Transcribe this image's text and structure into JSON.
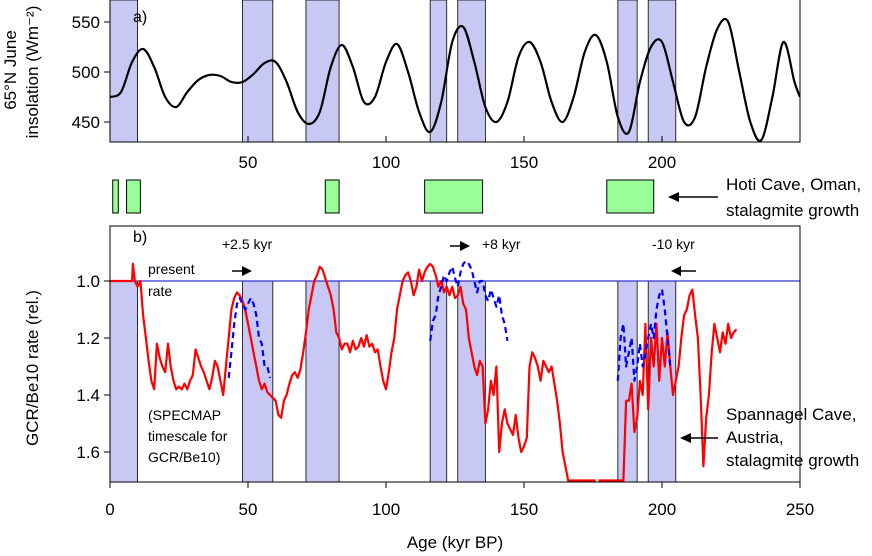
{
  "chart_data": [
    {
      "panel": "a)",
      "type": "line",
      "ylabel_line1": "65°N June",
      "ylabel_line2": "insolation (Wm⁻²)",
      "ylim": [
        430,
        560
      ],
      "yticks": [
        "450",
        "500",
        "550"
      ],
      "ytick_values": [
        450,
        500,
        550
      ],
      "xlim": [
        0,
        250
      ],
      "series": [
        {
          "color": "#000000",
          "x": [
            0,
            4,
            8,
            12,
            16,
            20,
            24,
            28,
            32,
            36,
            40,
            44,
            48,
            52,
            56,
            60,
            64,
            68,
            72,
            76,
            80,
            84,
            88,
            92,
            96,
            100,
            104,
            108,
            112,
            116,
            120,
            124,
            128,
            132,
            136,
            140,
            144,
            148,
            152,
            156,
            160,
            164,
            168,
            172,
            176,
            180,
            184,
            188,
            192,
            196,
            200,
            204,
            208,
            212,
            216,
            220,
            224,
            228,
            232,
            236,
            240,
            244,
            248,
            250
          ],
          "y": [
            475,
            480,
            510,
            523,
            505,
            475,
            465,
            480,
            492,
            497,
            496,
            490,
            490,
            498,
            509,
            510,
            490,
            460,
            448,
            460,
            505,
            527,
            505,
            470,
            475,
            510,
            528,
            500,
            460,
            440,
            470,
            530,
            545,
            510,
            465,
            450,
            470,
            515,
            530,
            510,
            470,
            450,
            475,
            520,
            537,
            510,
            455,
            440,
            490,
            525,
            530,
            490,
            450,
            455,
            505,
            543,
            550,
            500,
            450,
            432,
            475,
            530,
            490,
            475
          ]
        }
      ],
      "shaded_intervals": [
        [
          0,
          10
        ],
        [
          48,
          59
        ],
        [
          71,
          83
        ],
        [
          116,
          122
        ],
        [
          126,
          136
        ],
        [
          184,
          191
        ],
        [
          195,
          205
        ]
      ]
    },
    {
      "panel": "middle",
      "type": "bar",
      "label_line1": "Hoti Cave, Oman,",
      "label_line2": "stalagmite growth",
      "color": "#99ff99",
      "bars": [
        [
          1,
          3
        ],
        [
          6,
          11
        ],
        [
          78,
          83
        ],
        [
          114,
          135
        ],
        [
          180,
          197
        ]
      ]
    },
    {
      "panel": "b)",
      "type": "line",
      "ylabel": "GCR/Be10 rate (rel.)",
      "ylim": [
        1.7,
        0.8
      ],
      "yticks": [
        "1.0",
        "1.2",
        "1.4",
        "1.6"
      ],
      "ytick_values": [
        1.0,
        1.2,
        1.4,
        1.6
      ],
      "xlabel": "Age (kyr BP)",
      "xlim": [
        0,
        250
      ],
      "xticks": [
        "0",
        "50",
        "100",
        "150",
        "200",
        "250"
      ],
      "xtick_values": [
        0,
        50,
        100,
        150,
        200,
        250
      ],
      "present_rate": 1.0,
      "present_label_1": "present",
      "present_label_2": "rate",
      "timescale_note_1": "(SPECMAP",
      "timescale_note_2": "timescale for",
      "timescale_note_3": "GCR/Be10)",
      "shift_labels": [
        "+2.5 kyr",
        "+8 kyr",
        "-10 kyr"
      ],
      "spannagel_line1": "Spannagel Cave,",
      "spannagel_line2": "Austria,",
      "spannagel_line3": "stalagmite growth",
      "series": [
        {
          "color": "#ff0000",
          "style": "solid",
          "x": [
            0,
            8,
            8.3,
            9,
            10,
            11,
            12,
            13,
            14,
            15,
            16,
            17,
            18,
            19,
            20,
            21,
            22,
            23,
            24,
            25,
            26,
            27,
            28,
            29,
            30,
            31,
            32,
            33,
            34,
            35,
            36,
            37,
            38,
            39,
            40,
            41,
            42,
            43,
            44,
            45,
            46,
            47,
            48,
            49,
            50,
            51,
            52,
            53,
            54,
            55,
            56,
            57,
            58,
            59,
            60,
            61,
            62,
            63,
            64,
            65,
            66,
            67,
            68,
            69,
            70,
            71,
            72,
            73,
            74,
            75,
            76,
            77,
            78,
            79,
            80,
            81,
            82,
            83,
            84,
            85,
            86,
            87,
            88,
            89,
            90,
            91,
            92,
            93,
            94,
            95,
            96,
            97,
            98,
            99,
            100,
            101,
            102,
            103,
            104,
            105,
            106,
            107,
            108,
            109,
            110,
            111,
            112,
            113,
            114,
            115,
            116,
            117,
            118,
            119,
            120,
            121,
            122,
            123,
            124,
            125,
            126,
            127,
            128,
            129,
            130,
            131,
            132,
            133,
            134,
            135,
            136,
            137,
            138,
            139,
            140,
            141,
            142,
            143,
            144,
            145,
            146,
            147,
            148,
            149,
            150,
            151,
            152,
            153,
            154,
            155,
            156,
            157,
            158,
            159,
            160,
            161,
            162,
            163,
            164,
            165,
            166,
            167,
            168,
            169,
            170,
            171,
            172,
            173,
            174,
            175,
            176
          ],
          "y": [
            1.0,
            1.0,
            0.94,
            1.0,
            1.02,
            1.0,
            1.12,
            1.2,
            1.28,
            1.35,
            1.38,
            1.22,
            1.27,
            1.3,
            1.32,
            1.22,
            1.3,
            1.35,
            1.38,
            1.37,
            1.38,
            1.36,
            1.38,
            1.35,
            1.33,
            1.24,
            1.27,
            1.3,
            1.32,
            1.35,
            1.38,
            1.34,
            1.28,
            1.3,
            1.35,
            1.4,
            1.3,
            1.2,
            1.1,
            1.06,
            1.04,
            1.05,
            1.07,
            1.1,
            1.15,
            1.2,
            1.25,
            1.3,
            1.35,
            1.38,
            1.36,
            1.39,
            1.4,
            1.41,
            1.42,
            1.47,
            1.48,
            1.42,
            1.4,
            1.36,
            1.33,
            1.32,
            1.34,
            1.31,
            1.25,
            1.18,
            1.1,
            1.05,
            1.0,
            0.98,
            0.95,
            0.96,
            0.99,
            1.02,
            1.05,
            1.1,
            1.18,
            1.2,
            1.24,
            1.22,
            1.22,
            1.25,
            1.21,
            1.24,
            1.23,
            1.2,
            1.23,
            1.19,
            1.23,
            1.22,
            1.25,
            1.24,
            1.3,
            1.35,
            1.38,
            1.32,
            1.25,
            1.2,
            1.1,
            1.05,
            1.0,
            0.98,
            0.97,
            1.0,
            1.05,
            1.02,
            0.96,
            1.0,
            0.97,
            0.95,
            0.94,
            0.95,
            0.98,
            1.02,
            1.0,
            1.04,
            1.02,
            1.05,
            1.02,
            1.06,
            1.05,
            1.02,
            1.08,
            1.1,
            1.2,
            1.25,
            1.3,
            1.33,
            1.28,
            1.3,
            1.5,
            1.45,
            1.35,
            1.4,
            1.3,
            1.6,
            1.5,
            1.45,
            1.5,
            1.52,
            1.54,
            1.47,
            1.55,
            1.6,
            1.58,
            1.55,
            1.3,
            1.25,
            1.27,
            1.3,
            1.35,
            1.28,
            1.3,
            1.32,
            1.3,
            1.36,
            1.42,
            1.5,
            1.6,
            1.65,
            1.7,
            1.7,
            1.7,
            1.7,
            1.7,
            1.7,
            1.7,
            1.7,
            1.7,
            1.7,
            1.7
          ]
        },
        {
          "color": "#ff0000",
          "style": "solid",
          "x": [
            177,
            178,
            179,
            180,
            181,
            182,
            183,
            184,
            185,
            186,
            187,
            188,
            189,
            190,
            191,
            192,
            193,
            194,
            195,
            196,
            197,
            198,
            199,
            200,
            201,
            202,
            203,
            204,
            205,
            206,
            207,
            208,
            209,
            210,
            211,
            212,
            213,
            214,
            215,
            216,
            217,
            218,
            219,
            220,
            221,
            222,
            223,
            224,
            225,
            226,
            227
          ],
          "y": [
            1.7,
            1.7,
            1.7,
            1.7,
            1.7,
            1.7,
            1.7,
            1.7,
            1.7,
            1.7,
            1.42,
            1.42,
            1.36,
            1.53,
            1.48,
            1.35,
            1.4,
            1.15,
            1.45,
            1.2,
            1.3,
            1.15,
            1.35,
            1.2,
            1.3,
            1.18,
            1.3,
            1.4,
            1.35,
            1.3,
            1.2,
            1.12,
            1.1,
            1.05,
            1.03,
            1.12,
            1.2,
            1.4,
            1.65,
            1.48,
            1.4,
            1.25,
            1.15,
            1.2,
            1.25,
            1.18,
            1.22,
            1.15,
            1.2,
            1.18,
            1.17
          ]
        },
        {
          "color": "#0000ff",
          "style": "dashed",
          "x": [
            43,
            44,
            45,
            46,
            47,
            48,
            49,
            50,
            51,
            52,
            53,
            54,
            55,
            56,
            57,
            58
          ],
          "y": [
            1.34,
            1.25,
            1.15,
            1.08,
            1.06,
            1.08,
            1.1,
            1.08,
            1.06,
            1.08,
            1.12,
            1.2,
            1.22,
            1.3,
            1.3,
            1.34
          ]
        },
        {
          "color": "#0000ff",
          "style": "dashed",
          "x": [
            116,
            117,
            118,
            119,
            120,
            121,
            122,
            123,
            124,
            125,
            126,
            127,
            128,
            129,
            130,
            131,
            132,
            133,
            134,
            135,
            136,
            137,
            138,
            139,
            140,
            141,
            142,
            143,
            144
          ],
          "y": [
            1.21,
            1.14,
            1.12,
            1.05,
            1.02,
            0.98,
            1.0,
            0.97,
            0.95,
            0.99,
            1.02,
            0.97,
            0.94,
            0.93,
            0.94,
            0.96,
            1.0,
            1.04,
            1.0,
            1.0,
            1.05,
            1.07,
            1.03,
            1.06,
            1.09,
            1.05,
            1.12,
            1.15,
            1.21
          ]
        },
        {
          "color": "#0000ff",
          "style": "dashed",
          "x": [
            184,
            185,
            186,
            187,
            188,
            189,
            190,
            191,
            192,
            193,
            194,
            195,
            196,
            197,
            198,
            199,
            200,
            201,
            202,
            203
          ],
          "y": [
            1.35,
            1.2,
            1.15,
            1.3,
            1.25,
            1.2,
            1.35,
            1.3,
            1.22,
            1.3,
            1.25,
            1.2,
            1.15,
            1.2,
            1.1,
            1.05,
            1.03,
            1.1,
            1.2,
            1.3
          ]
        }
      ],
      "shaded_intervals": [
        [
          0,
          10
        ],
        [
          48,
          59
        ],
        [
          71,
          83
        ],
        [
          116,
          122
        ],
        [
          126,
          136
        ],
        [
          184,
          191
        ],
        [
          195,
          205
        ]
      ]
    }
  ],
  "colors": {
    "shade": "#c8c8f4",
    "green": "#99ff99",
    "red": "#ff0000",
    "blue_dash": "#0000ff",
    "present_line": "#3333cc"
  }
}
